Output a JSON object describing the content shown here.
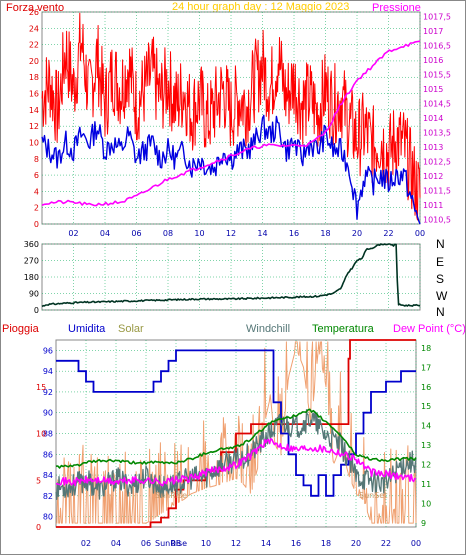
{
  "header": {
    "left_label": "Forza vento",
    "title": "24 hour graph day : 12 Maggio 2023",
    "right_label": "Pressione"
  },
  "colors": {
    "wind_gust": "#ff0000",
    "wind_avg": "#0000e0",
    "pressure": "#ff00ff",
    "wind_dir": "#003322",
    "rain": "#dd0000",
    "humidity": "#0000cc",
    "solar": "#f0a070",
    "windchill": "#557777",
    "temperature": "#008800",
    "dewpoint": "#ff00ff",
    "grid": "#00aa55",
    "axis_left": "#dd0000",
    "axis_right": "#cc00cc",
    "frame": "#888888"
  },
  "chart_data": [
    {
      "type": "line",
      "name": "wind-pressure",
      "xlim": [
        0,
        24
      ],
      "ylim": [
        0,
        26
      ],
      "y2lim": [
        1010.35,
        1017.65
      ],
      "yticks": [
        "0",
        "2",
        "4",
        "6",
        "8",
        "10",
        "12",
        "14",
        "16",
        "18",
        "20",
        "22",
        "24",
        "26"
      ],
      "y2ticks": [
        "1010,5",
        "1011",
        "1011,5",
        "1012",
        "1012,5",
        "1013",
        "1013,5",
        "1014",
        "1014,5",
        "1015",
        "1015,5",
        "1016",
        "1016,5",
        "1017",
        "1017,5"
      ],
      "xticks": [
        "02",
        "04",
        "06",
        "08",
        "10",
        "12",
        "14",
        "16",
        "18",
        "20",
        "22",
        "00"
      ],
      "grid": true,
      "series": [
        {
          "key": "gust",
          "axis": "left",
          "x": [
            0,
            0.5,
            1,
            1.5,
            2,
            2.5,
            3,
            3.5,
            4,
            4.5,
            5,
            5.5,
            6,
            6.5,
            7,
            7.5,
            8,
            8.5,
            9,
            9.5,
            10,
            10.5,
            11,
            11.5,
            12,
            12.5,
            13,
            13.5,
            14,
            14.5,
            15,
            15.5,
            16,
            16.5,
            17,
            17.5,
            18,
            18.5,
            19,
            19.5,
            20,
            20.5,
            21,
            21.5,
            22,
            22.5,
            23,
            23.3,
            23.6,
            23.8,
            24
          ],
          "y": [
            13,
            15,
            11,
            19,
            14,
            20,
            13,
            18,
            12,
            16,
            14,
            17,
            12,
            14,
            16,
            13,
            15,
            12,
            14,
            11,
            13,
            10,
            12,
            14,
            11,
            13,
            12,
            15,
            17,
            14,
            18,
            13,
            15,
            12,
            13,
            11,
            14,
            12,
            13,
            10,
            8,
            9,
            7,
            8,
            6,
            8,
            7,
            5,
            3,
            2,
            1
          ]
        },
        {
          "key": "avg",
          "axis": "left",
          "x": [
            0,
            0.5,
            1,
            1.5,
            2,
            2.5,
            3,
            3.5,
            4,
            4.5,
            5,
            5.5,
            6,
            6.5,
            7,
            7.5,
            8,
            8.5,
            9,
            9.5,
            10,
            10.5,
            11,
            11.5,
            12,
            12.5,
            13,
            13.5,
            14,
            14.5,
            15,
            15.5,
            16,
            16.5,
            17,
            17.5,
            18,
            18.5,
            19,
            19.5,
            20,
            20.5,
            21,
            21.5,
            22,
            22.5,
            23,
            23.3,
            23.6,
            23.8,
            24
          ],
          "y": [
            10,
            9,
            8,
            10,
            9,
            11,
            10,
            12,
            9,
            10,
            9,
            11,
            8,
            9,
            10,
            8,
            9,
            8,
            9,
            7,
            8,
            7,
            7,
            9,
            8,
            9,
            9,
            10,
            12,
            11,
            12,
            9,
            10,
            8,
            10,
            9,
            11,
            9,
            9,
            7,
            2,
            6,
            5,
            6,
            5,
            6,
            6,
            4,
            2,
            1,
            0.5
          ]
        },
        {
          "key": "pressure",
          "axis": "right",
          "x": [
            0,
            1,
            2,
            3,
            4,
            5,
            6,
            7,
            8,
            9,
            10,
            11,
            12,
            13,
            14,
            15,
            16,
            17,
            18,
            19,
            20,
            21,
            22,
            23,
            24
          ],
          "y": [
            1011.05,
            1011.1,
            1011.1,
            1011.0,
            1011.05,
            1011.1,
            1011.3,
            1011.6,
            1011.9,
            1012.1,
            1012.3,
            1012.5,
            1012.7,
            1012.9,
            1013.05,
            1013.05,
            1013.05,
            1013.1,
            1013.5,
            1014.5,
            1015.3,
            1015.8,
            1016.3,
            1016.5,
            1016.6
          ]
        }
      ]
    },
    {
      "type": "line",
      "name": "wind-direction",
      "xlim": [
        0,
        24
      ],
      "ylim": [
        0,
        360
      ],
      "yticks": [
        "0",
        "90",
        "180",
        "270",
        "360"
      ],
      "y2ticks": [
        "N",
        "W",
        "S",
        "E",
        "N"
      ],
      "grid": true,
      "series": [
        {
          "key": "dir",
          "x": [
            0,
            0.3,
            2,
            4,
            6,
            8,
            10,
            12,
            14,
            16,
            17.5,
            18.5,
            19,
            19.4,
            19.7,
            20,
            20.3,
            20.6,
            21,
            21.5,
            22,
            22.3,
            22.5,
            22.6,
            23,
            24
          ],
          "y": [
            20,
            30,
            40,
            45,
            50,
            55,
            60,
            60,
            65,
            70,
            75,
            90,
            120,
            200,
            230,
            270,
            280,
            330,
            340,
            360,
            360,
            350,
            360,
            30,
            25,
            25
          ]
        }
      ]
    },
    {
      "type": "line",
      "name": "rain-humidity-temp",
      "xlim": [
        0,
        24
      ],
      "ylim": [
        79,
        97
      ],
      "y2lim": [
        8.8,
        18.4
      ],
      "legend": [
        "Pioggia",
        "Umidita",
        "Solar",
        "Windchill",
        "Temperatura",
        "Dew Point (°C)"
      ],
      "yticks": [
        "80",
        "82",
        "84",
        "86",
        "88",
        "90",
        "92",
        "94",
        "96"
      ],
      "rain_ticks": [
        "0",
        "5",
        "10",
        "15"
      ],
      "y2ticks": [
        "9",
        "10",
        "11",
        "12",
        "13",
        "14",
        "15",
        "16",
        "17",
        "18"
      ],
      "xticks": [
        "02",
        "04",
        "06",
        "08",
        "10",
        "12",
        "14",
        "16",
        "18",
        "20",
        "22",
        "00"
      ],
      "annotations": [
        "SunRise",
        "SunSet"
      ],
      "grid": true,
      "series": [
        {
          "key": "humidity",
          "axis": "left",
          "x": [
            0,
            1,
            1.5,
            2,
            2.5,
            3,
            4,
            5,
            6,
            6.5,
            7,
            7.5,
            8,
            9,
            10,
            11,
            12,
            13,
            13.5,
            14,
            14.5,
            15,
            15.5,
            16,
            16.5,
            17,
            17.5,
            18,
            18.5,
            19,
            19.5,
            20,
            20.5,
            21,
            22,
            23,
            24
          ],
          "y": [
            95,
            95,
            94,
            93,
            92,
            92,
            92,
            92,
            92,
            93,
            94,
            95,
            96,
            96,
            96,
            96,
            96,
            96,
            96,
            96,
            91,
            88,
            86,
            84,
            83,
            82,
            84,
            82,
            84,
            85,
            86,
            88,
            90,
            92,
            93,
            94,
            94
          ]
        },
        {
          "key": "rain",
          "axis": "rain",
          "x": [
            0,
            6,
            6.3,
            7,
            7.5,
            8,
            8.5,
            9,
            10,
            11,
            12,
            13,
            14,
            15,
            16,
            17,
            18,
            19,
            19.5,
            19.6,
            20,
            24
          ],
          "y": [
            0,
            0,
            0.5,
            1,
            2,
            4,
            5,
            5,
            6,
            8,
            10,
            11,
            11,
            11,
            11,
            11,
            11,
            11,
            18,
            20,
            20,
            20
          ]
        },
        {
          "key": "temperature",
          "axis": "right",
          "x": [
            0,
            1,
            2,
            3,
            4,
            5,
            6,
            7,
            8,
            9,
            10,
            11,
            12,
            13,
            14,
            15,
            16,
            17,
            18,
            19,
            20,
            21,
            22,
            23,
            24
          ],
          "y": [
            11.9,
            11.9,
            12.1,
            12.2,
            12.2,
            12.1,
            12.1,
            12.1,
            12.1,
            12.3,
            12.6,
            12.8,
            12.9,
            13.3,
            14.0,
            14.4,
            14.5,
            14.8,
            14.2,
            13.5,
            12.5,
            12.3,
            12.2,
            12.3,
            12.3
          ]
        },
        {
          "key": "windchill",
          "axis": "right",
          "x": [
            0,
            1,
            2,
            3,
            4,
            5,
            6,
            7,
            8,
            9,
            10,
            11,
            12,
            13,
            14,
            15,
            16,
            17,
            18,
            19,
            20,
            21,
            22,
            23,
            24
          ],
          "y": [
            10.8,
            10.9,
            11.2,
            10.7,
            11.3,
            10.9,
            11.4,
            10.8,
            11.0,
            11.3,
            11.4,
            12.0,
            12.2,
            12.6,
            13.4,
            14.2,
            13.9,
            14.4,
            13.5,
            13.0,
            11.4,
            11.2,
            11.0,
            12.0,
            12.2
          ]
        },
        {
          "key": "dewpoint",
          "axis": "right",
          "x": [
            0,
            1,
            2,
            3,
            4,
            5,
            6,
            7,
            8,
            9,
            10,
            11,
            12,
            13,
            14,
            15,
            16,
            17,
            18,
            19,
            20,
            21,
            22,
            23,
            24
          ],
          "y": [
            11.2,
            11.1,
            11.2,
            11.2,
            11.1,
            11.2,
            11.2,
            11.1,
            11.2,
            11.3,
            11.6,
            11.8,
            12.0,
            12.5,
            13.2,
            13.0,
            12.8,
            12.9,
            12.8,
            12.6,
            12.3,
            11.6,
            11.5,
            11.4,
            11.3
          ]
        },
        {
          "key": "solar",
          "axis": "right",
          "x": [
            0,
            6,
            6.5,
            7,
            7.5,
            8,
            8.5,
            9,
            10,
            11,
            12,
            12.5,
            13,
            13.5,
            14,
            14.3,
            14.6,
            15,
            15.5,
            16,
            16.5,
            17,
            17.5,
            18,
            18.5,
            19,
            19.5,
            20,
            20.5,
            21,
            24
          ],
          "y": [
            9,
            9,
            9.2,
            9.5,
            9.7,
            10.0,
            10.2,
            10.5,
            10.8,
            11.0,
            11.3,
            11.0,
            10.5,
            12.0,
            14.5,
            15.5,
            13.0,
            12.5,
            16.5,
            18.0,
            17.0,
            14.0,
            18.0,
            16.0,
            12.0,
            13.0,
            11.5,
            10.5,
            10.2,
            9.0,
            9
          ]
        }
      ]
    }
  ]
}
